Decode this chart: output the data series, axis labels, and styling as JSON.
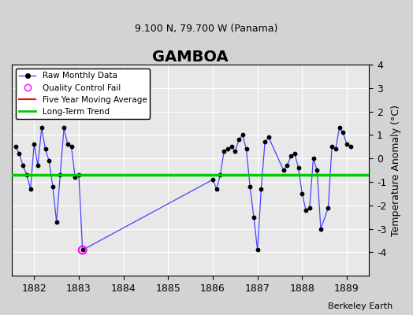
{
  "title": "GAMBOA",
  "subtitle": "9.100 N, 79.700 W (Panama)",
  "ylabel": "Temperature Anomaly (°C)",
  "xlabel_credit": "Berkeley Earth",
  "ylim": [
    -5,
    4
  ],
  "yticks": [
    -4,
    -3,
    -2,
    -1,
    0,
    1,
    2,
    3,
    4
  ],
  "xlim": [
    1881.5,
    1889.5
  ],
  "xticks": [
    1882,
    1883,
    1884,
    1885,
    1886,
    1887,
    1888,
    1889
  ],
  "bg_color": "#d3d3d3",
  "plot_bg_color": "#e8e8e8",
  "grid_color": "#ffffff",
  "raw_data_x": [
    1881.583,
    1881.667,
    1881.75,
    1881.833,
    1881.917,
    1882.0,
    1882.083,
    1882.167,
    1882.25,
    1882.333,
    1882.417,
    1882.5,
    1882.583,
    1882.667,
    1882.75,
    1882.833,
    1882.917,
    1883.0,
    1883.083,
    1886.0,
    1886.083,
    1886.167,
    1886.25,
    1886.333,
    1886.417,
    1886.5,
    1886.583,
    1886.667,
    1886.75,
    1886.833,
    1886.917,
    1887.0,
    1887.083,
    1887.167,
    1887.25,
    1887.583,
    1887.667,
    1887.75,
    1887.833,
    1887.917,
    1888.0,
    1888.083,
    1888.167,
    1888.25,
    1888.333,
    1888.417,
    1888.583,
    1888.667,
    1888.75,
    1888.833,
    1888.917,
    1889.0,
    1889.083
  ],
  "raw_data_y": [
    0.5,
    0.2,
    -0.3,
    -0.7,
    -1.3,
    0.6,
    -0.3,
    1.3,
    0.4,
    -0.1,
    -1.2,
    -2.7,
    -0.7,
    1.3,
    0.6,
    0.5,
    -0.8,
    -0.7,
    -3.9,
    -0.9,
    -1.3,
    -0.7,
    0.3,
    0.4,
    0.5,
    0.3,
    0.8,
    1.0,
    0.4,
    -1.2,
    -2.5,
    -3.9,
    -1.3,
    0.7,
    0.9,
    -0.5,
    -0.3,
    0.1,
    0.2,
    -0.4,
    -1.5,
    -2.2,
    -2.1,
    0.0,
    -0.5,
    -3.0,
    -2.1,
    0.5,
    0.4,
    1.3,
    1.1,
    0.6,
    0.5
  ],
  "qc_fail_x": [
    1883.083
  ],
  "qc_fail_y": [
    -3.9
  ],
  "long_term_trend_y": -0.7,
  "line_color": "#4444ff",
  "dot_color": "#000000",
  "qc_color": "#ff00ff",
  "moving_avg_color": "#ff0000",
  "trend_color": "#00cc00"
}
